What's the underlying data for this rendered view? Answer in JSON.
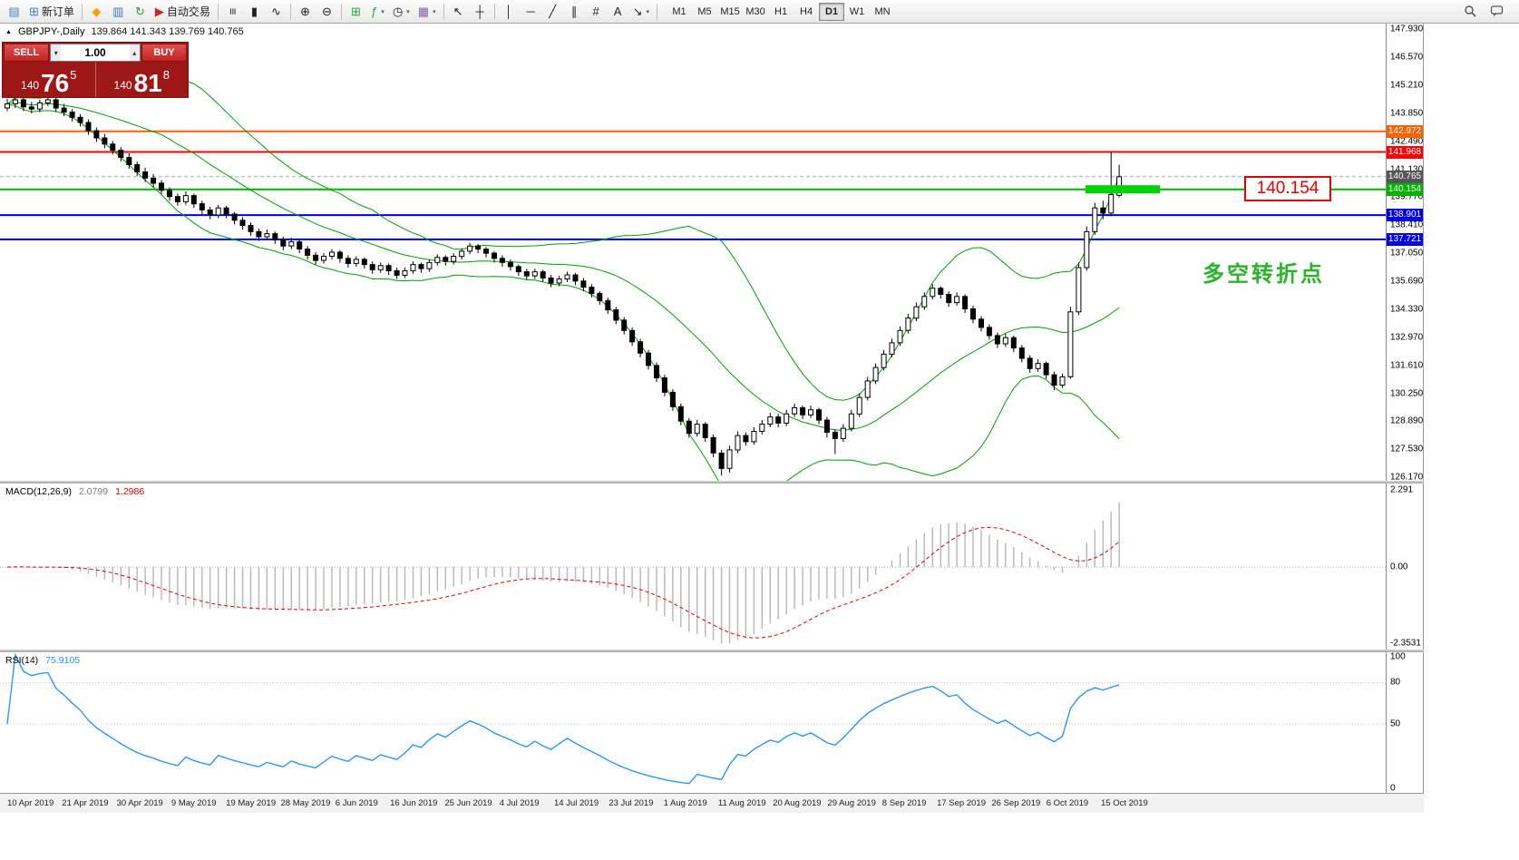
{
  "toolbar": {
    "groups": [
      {
        "items": [
          {
            "name": "new-chart-icon",
            "glyph": "▤",
            "color": "#4a7ebb"
          },
          {
            "name": "new-order-button",
            "glyph": "⊞",
            "color": "#4a7ebb",
            "label": "新订单"
          }
        ]
      },
      {
        "items": [
          {
            "name": "metaeditor-icon",
            "glyph": "◆",
            "color": "#e8a800"
          },
          {
            "name": "market-watch-icon",
            "glyph": "▥",
            "color": "#4472c4"
          },
          {
            "name": "refresh-icon",
            "glyph": "↻",
            "color": "#2e9e3f"
          },
          {
            "name": "autotrading-button",
            "glyph": "▶",
            "color": "#cc2222",
            "label": "自动交易"
          }
        ]
      },
      {
        "items": [
          {
            "name": "bar-chart-icon",
            "glyph": "≡",
            "rotate": true
          },
          {
            "name": "candlestick-chart-icon",
            "glyph": "▮"
          },
          {
            "name": "line-chart-icon",
            "glyph": "∿"
          }
        ]
      },
      {
        "items": [
          {
            "name": "zoom-in-icon",
            "glyph": "⊕"
          },
          {
            "name": "zoom-out-icon",
            "glyph": "⊖"
          }
        ]
      },
      {
        "items": [
          {
            "name": "tile-windows-icon",
            "glyph": "⊞",
            "color": "#2e9e3f"
          },
          {
            "name": "indicators-button",
            "glyph": "ƒ",
            "color": "#2e9e3f",
            "dropdown": true
          },
          {
            "name": "periods-button",
            "glyph": "◷",
            "dropdown": true
          },
          {
            "name": "templates-button",
            "glyph": "▦",
            "color": "#8064a2",
            "dropdown": true
          }
        ]
      },
      {
        "items": [
          {
            "name": "cursor-icon",
            "glyph": "↖"
          },
          {
            "name": "crosshair-icon",
            "glyph": "┼"
          }
        ]
      },
      {
        "items": [
          {
            "name": "vertical-line-icon",
            "glyph": "│"
          },
          {
            "name": "horizontal-line-icon",
            "glyph": "─"
          },
          {
            "name": "trendline-icon",
            "glyph": "╱"
          },
          {
            "name": "channel-icon",
            "glyph": "∥"
          },
          {
            "name": "fibonacci-icon",
            "glyph": "#"
          },
          {
            "name": "text-icon",
            "glyph": "A"
          },
          {
            "name": "arrows-icon",
            "glyph": "↘",
            "dropdown": true
          }
        ]
      }
    ],
    "timeframes": {
      "labels": [
        "M1",
        "M5",
        "M15",
        "M30",
        "H1",
        "H4",
        "D1",
        "W1",
        "MN"
      ],
      "active": "D1"
    }
  },
  "chart": {
    "symbol_title": "GBPJPY-,Daily",
    "ohlc_label": "139.864 141.343 139.769 140.765",
    "trade_panel": {
      "sell_label": "SELL",
      "buy_label": "BUY",
      "volume": "1.00",
      "sell_price": {
        "main": "140",
        "big": "76",
        "sup": "5"
      },
      "buy_price": {
        "main": "140",
        "big": "81",
        "sup": "8"
      }
    },
    "levels": [
      {
        "price": 142.972,
        "label": "142.972",
        "color": "#ff6000",
        "width": 2
      },
      {
        "price": 141.968,
        "label": "141.968",
        "color": "#ff0000",
        "width": 2
      },
      {
        "price": 140.154,
        "label": "140.154",
        "color": "#00b400",
        "width": 2
      },
      {
        "price": 138.901,
        "label": "138.901",
        "color": "#0000e8",
        "width": 2
      },
      {
        "price": 137.721,
        "label": "137.721",
        "color": "#0000e8",
        "width": 2
      }
    ],
    "current_price": {
      "price": 140.765,
      "label": "140.765"
    },
    "green_zone": {
      "price": 140.154,
      "color": "#00d300"
    },
    "level_callout": "140.154",
    "annotation_text": "多空转折点",
    "price_axis_ticks": [
      "147.930",
      "146.570",
      "145.210",
      "143.850",
      "142.490",
      "141.130",
      "139.770",
      "138.410",
      "137.050",
      "135.690",
      "134.330",
      "132.970",
      "131.610",
      "130.250",
      "128.890",
      "127.530",
      "126.170"
    ]
  },
  "macd": {
    "name": "MACD(12,26,9)",
    "value_main": "2.0799",
    "value_signal": "1.2986",
    "fast": 12,
    "slow": 26,
    "signal": 9,
    "axis": [
      {
        "label": "2.291",
        "value": 2.291
      },
      {
        "label": "0.00",
        "value": 0
      },
      {
        "label": "-2.3531",
        "value": -2.3531
      }
    ]
  },
  "rsi": {
    "name": "RSI(14)",
    "value": "75.9105",
    "period": 14,
    "levels": [
      80,
      50
    ],
    "axis": [
      {
        "label": "100",
        "value": 100
      },
      {
        "label": "80",
        "value": 80
      },
      {
        "label": "50",
        "value": 50
      },
      {
        "label": "0",
        "value": 0
      }
    ]
  },
  "date_axis": [
    "10 Apr 2019",
    "21 Apr 2019",
    "30 Apr 2019",
    "9 May 2019",
    "19 May 2019",
    "28 May 2019",
    "6 Jun 2019",
    "16 Jun 2019",
    "25 Jun 2019",
    "4 Jul 2019",
    "14 Jul 2019",
    "23 Jul 2019",
    "1 Aug 2019",
    "11 Aug 2019",
    "20 Aug 2019",
    "29 Aug 2019",
    "8 Sep 2019",
    "17 Sep 2019",
    "26 Sep 2019",
    "6 Oct 2019",
    "15 Oct 2019"
  ],
  "chart_data": {
    "type": "candlestick",
    "title": "GBPJPY-,Daily",
    "ylim": [
      126.0,
      148.2
    ],
    "last_bar": {
      "open": 139.864,
      "high": 141.343,
      "low": 139.769,
      "close": 140.765
    },
    "indicators": [
      {
        "type": "bollinger",
        "period": 20,
        "deviation": 2
      },
      {
        "type": "macd",
        "fast": 12,
        "slow": 26,
        "signal": 9,
        "last": 2.0799,
        "last_signal": 1.2986
      },
      {
        "type": "rsi",
        "period": 14,
        "last": 75.9105
      }
    ],
    "candles": [
      [
        144.1,
        144.55,
        143.95,
        144.3
      ],
      [
        144.3,
        144.7,
        144.1,
        144.5
      ],
      [
        144.5,
        144.6,
        143.95,
        144.15
      ],
      [
        144.15,
        144.4,
        143.85,
        144.05
      ],
      [
        144.05,
        144.5,
        143.9,
        144.35
      ],
      [
        144.35,
        145.2,
        144.2,
        144.5
      ],
      [
        144.5,
        144.65,
        143.9,
        144.1
      ],
      [
        144.1,
        144.3,
        143.7,
        143.9
      ],
      [
        143.9,
        144.05,
        143.45,
        143.65
      ],
      [
        143.65,
        143.8,
        143.2,
        143.4
      ],
      [
        143.4,
        143.55,
        142.8,
        143.0
      ],
      [
        143.0,
        143.15,
        142.45,
        142.65
      ],
      [
        142.65,
        142.85,
        142.15,
        142.35
      ],
      [
        142.35,
        142.5,
        141.85,
        142.05
      ],
      [
        142.05,
        142.2,
        141.5,
        141.7
      ],
      [
        141.7,
        141.9,
        141.15,
        141.35
      ],
      [
        141.35,
        141.5,
        140.8,
        141.0
      ],
      [
        141.0,
        141.2,
        140.5,
        140.7
      ],
      [
        140.7,
        140.9,
        140.25,
        140.45
      ],
      [
        140.45,
        140.6,
        139.9,
        140.1
      ],
      [
        140.1,
        140.25,
        139.6,
        139.8
      ],
      [
        139.8,
        139.95,
        139.35,
        139.55
      ],
      [
        139.55,
        140.05,
        139.4,
        139.85
      ],
      [
        139.85,
        139.95,
        139.25,
        139.45
      ],
      [
        139.45,
        139.6,
        138.95,
        139.15
      ],
      [
        139.15,
        139.3,
        138.7,
        138.9
      ],
      [
        138.9,
        139.4,
        138.75,
        139.25
      ],
      [
        139.25,
        139.35,
        138.75,
        138.95
      ],
      [
        138.95,
        139.05,
        138.45,
        138.65
      ],
      [
        138.65,
        138.8,
        138.2,
        138.4
      ],
      [
        138.4,
        138.55,
        137.9,
        138.1
      ],
      [
        138.1,
        138.25,
        137.65,
        137.85
      ],
      [
        137.85,
        138.2,
        137.7,
        138.0
      ],
      [
        138.0,
        138.1,
        137.5,
        137.7
      ],
      [
        137.7,
        137.85,
        137.2,
        137.4
      ],
      [
        137.4,
        137.8,
        137.25,
        137.6
      ],
      [
        137.6,
        137.7,
        137.05,
        137.25
      ],
      [
        137.25,
        137.4,
        136.75,
        136.95
      ],
      [
        136.95,
        137.1,
        136.5,
        136.7
      ],
      [
        136.7,
        137.05,
        136.55,
        136.9
      ],
      [
        136.9,
        137.25,
        136.75,
        137.1
      ],
      [
        137.1,
        137.2,
        136.6,
        136.8
      ],
      [
        136.8,
        136.95,
        136.35,
        136.55
      ],
      [
        136.55,
        136.9,
        136.4,
        136.75
      ],
      [
        136.75,
        136.85,
        136.3,
        136.5
      ],
      [
        136.5,
        136.65,
        136.05,
        136.25
      ],
      [
        136.25,
        136.6,
        136.1,
        136.45
      ],
      [
        136.45,
        136.55,
        136.0,
        136.2
      ],
      [
        136.2,
        136.35,
        135.8,
        135.98
      ],
      [
        135.98,
        136.35,
        135.85,
        136.2
      ],
      [
        136.2,
        136.65,
        136.05,
        136.5
      ],
      [
        136.5,
        136.6,
        136.1,
        136.3
      ],
      [
        136.3,
        136.75,
        136.15,
        136.6
      ],
      [
        136.6,
        137.0,
        136.45,
        136.85
      ],
      [
        136.85,
        136.95,
        136.45,
        136.65
      ],
      [
        136.65,
        137.05,
        136.5,
        136.9
      ],
      [
        136.9,
        137.3,
        136.75,
        137.15
      ],
      [
        137.15,
        137.55,
        137.0,
        137.4
      ],
      [
        137.4,
        137.5,
        137.05,
        137.25
      ],
      [
        137.25,
        137.35,
        136.85,
        137.05
      ],
      [
        137.05,
        137.15,
        136.6,
        136.8
      ],
      [
        136.8,
        136.95,
        136.4,
        136.6
      ],
      [
        136.6,
        136.75,
        136.2,
        136.4
      ],
      [
        136.4,
        136.5,
        135.95,
        136.15
      ],
      [
        136.15,
        136.3,
        135.75,
        135.95
      ],
      [
        135.95,
        136.3,
        135.8,
        136.15
      ],
      [
        136.15,
        136.25,
        135.65,
        135.85
      ],
      [
        135.85,
        136.0,
        135.4,
        135.6
      ],
      [
        135.6,
        135.95,
        135.45,
        135.8
      ],
      [
        135.8,
        136.15,
        135.65,
        136.0
      ],
      [
        136.0,
        136.1,
        135.5,
        135.7
      ],
      [
        135.7,
        135.85,
        135.2,
        135.4
      ],
      [
        135.4,
        135.55,
        134.9,
        135.1
      ],
      [
        135.1,
        135.2,
        134.55,
        134.75
      ],
      [
        134.75,
        134.9,
        134.1,
        134.3
      ],
      [
        134.3,
        134.45,
        133.6,
        133.8
      ],
      [
        133.8,
        133.95,
        133.1,
        133.3
      ],
      [
        133.3,
        133.45,
        132.55,
        132.75
      ],
      [
        132.75,
        132.9,
        132.0,
        132.2
      ],
      [
        132.2,
        132.35,
        131.4,
        131.6
      ],
      [
        131.6,
        131.75,
        130.8,
        131.0
      ],
      [
        131.0,
        131.15,
        130.1,
        130.3
      ],
      [
        130.3,
        130.45,
        129.4,
        129.6
      ],
      [
        129.6,
        129.75,
        128.7,
        128.9
      ],
      [
        128.9,
        129.05,
        128.1,
        128.3
      ],
      [
        128.3,
        128.95,
        128.15,
        128.75
      ],
      [
        128.75,
        128.85,
        127.9,
        128.1
      ],
      [
        128.1,
        128.25,
        127.15,
        127.35
      ],
      [
        127.35,
        127.5,
        126.25,
        126.6
      ],
      [
        126.6,
        127.7,
        126.4,
        127.5
      ],
      [
        127.5,
        128.4,
        127.35,
        128.2
      ],
      [
        128.2,
        128.35,
        127.7,
        127.9
      ],
      [
        127.9,
        128.6,
        127.75,
        128.4
      ],
      [
        128.4,
        128.95,
        128.25,
        128.75
      ],
      [
        128.75,
        129.3,
        128.6,
        129.1
      ],
      [
        129.1,
        129.25,
        128.6,
        128.8
      ],
      [
        128.8,
        129.45,
        128.65,
        129.25
      ],
      [
        129.25,
        129.75,
        129.1,
        129.55
      ],
      [
        129.55,
        129.65,
        129.0,
        129.2
      ],
      [
        129.2,
        129.65,
        129.05,
        129.45
      ],
      [
        129.45,
        129.55,
        128.75,
        128.95
      ],
      [
        128.95,
        129.1,
        128.1,
        128.35
      ],
      [
        128.35,
        128.5,
        127.3,
        128.05
      ],
      [
        128.05,
        128.75,
        127.9,
        128.55
      ],
      [
        128.55,
        129.45,
        128.4,
        129.25
      ],
      [
        129.25,
        130.25,
        129.1,
        130.05
      ],
      [
        130.05,
        131.05,
        129.9,
        130.85
      ],
      [
        130.85,
        131.7,
        130.7,
        131.5
      ],
      [
        131.5,
        132.35,
        131.35,
        132.15
      ],
      [
        132.15,
        132.9,
        132.0,
        132.7
      ],
      [
        132.7,
        133.5,
        132.55,
        133.3
      ],
      [
        133.3,
        134.1,
        133.15,
        133.9
      ],
      [
        133.9,
        134.65,
        133.75,
        134.45
      ],
      [
        134.45,
        135.15,
        134.3,
        134.95
      ],
      [
        134.95,
        135.55,
        134.8,
        135.35
      ],
      [
        135.35,
        135.45,
        134.85,
        135.05
      ],
      [
        135.05,
        135.2,
        134.45,
        134.65
      ],
      [
        134.65,
        135.15,
        134.5,
        134.95
      ],
      [
        134.95,
        135.05,
        134.15,
        134.35
      ],
      [
        134.35,
        134.5,
        133.65,
        133.85
      ],
      [
        133.85,
        134.0,
        133.25,
        133.45
      ],
      [
        133.45,
        133.6,
        132.85,
        133.05
      ],
      [
        133.05,
        133.2,
        132.45,
        132.65
      ],
      [
        132.65,
        133.15,
        132.5,
        132.95
      ],
      [
        132.95,
        133.05,
        132.25,
        132.45
      ],
      [
        132.45,
        132.6,
        131.75,
        131.95
      ],
      [
        131.95,
        132.1,
        131.25,
        131.45
      ],
      [
        131.45,
        131.9,
        131.3,
        131.7
      ],
      [
        131.7,
        131.8,
        130.95,
        131.15
      ],
      [
        131.15,
        131.3,
        130.4,
        130.65
      ],
      [
        130.65,
        131.2,
        130.5,
        131.05
      ],
      [
        131.05,
        134.45,
        130.95,
        134.2
      ],
      [
        134.2,
        136.6,
        134.05,
        136.35
      ],
      [
        136.35,
        138.35,
        136.2,
        138.1
      ],
      [
        138.1,
        139.5,
        137.95,
        139.25
      ],
      [
        139.25,
        139.6,
        138.7,
        139.0
      ],
      [
        139.0,
        141.95,
        138.85,
        139.9
      ],
      [
        139.864,
        141.343,
        139.769,
        140.765
      ]
    ]
  }
}
